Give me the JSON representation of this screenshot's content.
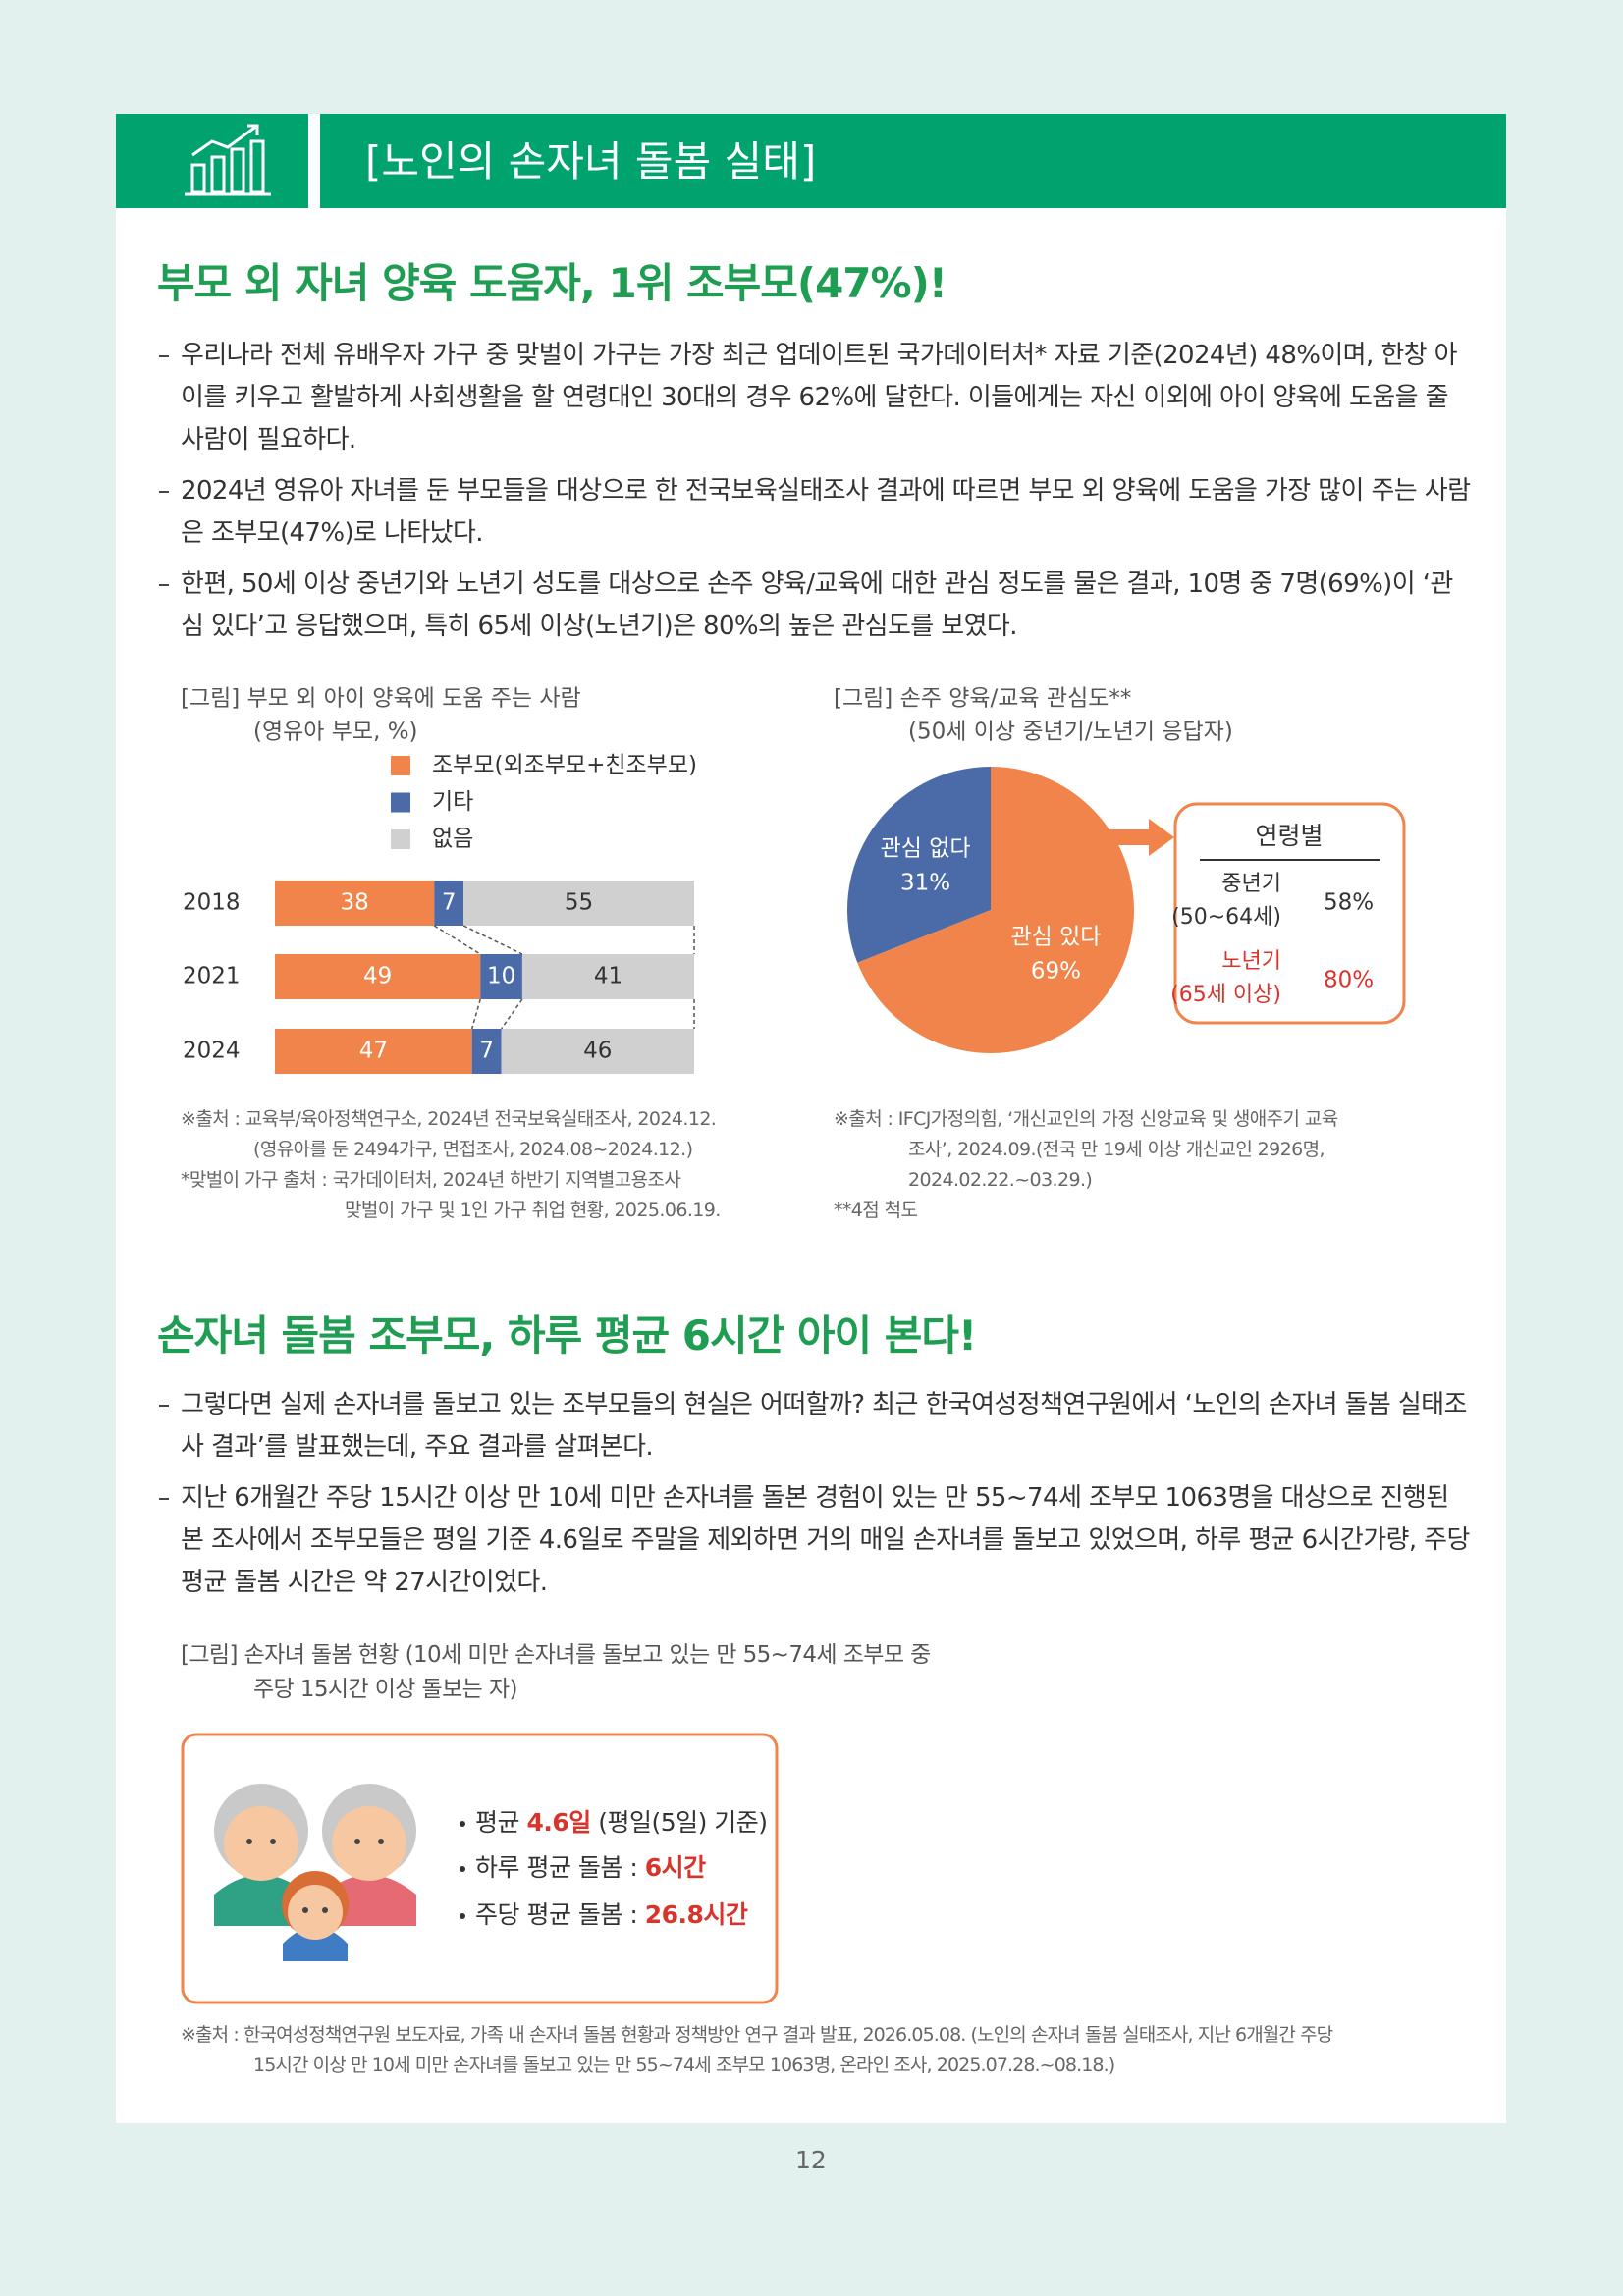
{
  "header": {
    "title": "[노인의 손자녀 돌봄 실태]"
  },
  "section1": {
    "heading": "부모 외 자녀 양육 도움자, 1위 조부모(47%)!",
    "bullets": [
      "우리나라 전체 유배우자 가구 중 맞벌이 가구는 가장 최근 업데이트된 국가데이터처* 자료 기준(2024년) 48%이며, 한창 아이를 키우고 활발하게 사회생활을 할 연령대인 30대의 경우 62%에 달한다. 이들에게는 자신 이외에 아이 양육에 도움을 줄 사람이 필요하다.",
      "2024년 영유아 자녀를 둔 부모들을 대상으로 한 전국보육실태조사 결과에 따르면 부모 외 양육에 도움을 가장 많이 주는 사람은 조부모(47%)로 나타났다.",
      "한편, 50세 이상 중년기와 노년기 성도를 대상으로 손주 양육/교육에 대한 관심 정도를 물은 결과, 10명 중 7명(69%)이 ‘관심 있다’고 응답했으며, 특히 65세 이상(노년기)은 80%의 높은 관심도를 보였다."
    ]
  },
  "chart_data": [
    {
      "type": "stacked-bar",
      "title": "[그림] 부모 외 아이 양육에 도움 주는 사람",
      "subtitle": "(영유아 부모, %)",
      "categories": [
        "2018",
        "2021",
        "2024"
      ],
      "series": [
        {
          "name": "조부모(외조부모+친조부모)",
          "color": "#f0844a",
          "values": [
            38,
            49,
            47
          ]
        },
        {
          "name": "기타",
          "color": "#4a6aa8",
          "values": [
            7,
            10,
            7
          ]
        },
        {
          "name": "없음",
          "color": "#d0d0d0",
          "values": [
            55,
            41,
            46
          ]
        }
      ],
      "xlim": [
        0,
        100
      ]
    },
    {
      "type": "pie",
      "title": "[그림] 손주 양육/교육 관심도**",
      "subtitle": "(50세 이상 중년기/노년기 응답자)",
      "categories": [
        "관심 없다",
        "관심 있다"
      ],
      "values": [
        31,
        69
      ],
      "value_labels": [
        "31%",
        "69%"
      ],
      "colors": [
        "#4a6aa8",
        "#f0844a"
      ]
    }
  ],
  "callout": {
    "title": "연령별",
    "rows": [
      {
        "label": [
          "중년기",
          "(50~64세)"
        ],
        "value": "58%"
      },
      {
        "label": [
          "노년기",
          "(65세 이상)"
        ],
        "value": "80%"
      }
    ]
  },
  "source1": [
    "※출처 : 교육부/육아정책연구소, 2024년 전국보육실태조사, 2024.12.",
    "(영유아를 둔 2494가구, 면접조사, 2024.08~2024.12.)",
    "*맞벌이 가구 출처 : 국가데이터처, 2024년 하반기 지역별고용조사",
    "맞벌이 가구 및 1인 가구 취업 현황, 2025.06.19."
  ],
  "source2": [
    "※출처 : IFCJ가정의힘, ‘개신교인의 가정 신앙교육 및 생애주기 교육",
    "조사’, 2024.09.(전국 만 19세 이상 개신교인 2926명,",
    "2024.02.22.~03.29.)",
    "**4점 척도"
  ],
  "section2": {
    "heading": "손자녀 돌봄 조부모, 하루 평균 6시간 아이 본다!",
    "bullets": [
      "그렇다면 실제 손자녀를 돌보고 있는 조부모들의 현실은 어떠할까? 최근 한국여성정책연구원에서 ‘노인의 손자녀 돌봄 실태조사 결과’를 발표했는데, 주요 결과를 살펴본다.",
      "지난 6개월간 주당 15시간 이상 만 10세 미만 손자녀를 돌본 경험이 있는 만 55~74세 조부모 1063명을 대상으로 진행된 본 조사에서 조부모들은 평일 기준 4.6일로 주말을 제외하면 거의 매일 손자녀를 돌보고 있었으며, 하루 평균 6시간가량, 주당 평균 돌봄 시간은 약 27시간이었다."
    ]
  },
  "figure3": {
    "caption": [
      "[그림] 손자녀 돌봄 현황 (10세 미만 손자녀를 돌보고 있는 만 55~74세 조부모 중",
      "주당 15시간 이상 돌보는 자)"
    ],
    "items": [
      {
        "text": "평균 ",
        "highlight": "4.6일",
        "rest": " (평일(5일) 기준)"
      },
      {
        "text": "하루 평균 돌봄 : ",
        "highlight": "6시간"
      },
      {
        "text": "주당 평균 돌봄 : ",
        "highlight": "26.8시간"
      }
    ]
  },
  "source3": [
    "※출처 : 한국여성정책연구원 보도자료, 가족 내 손자녀 돌봄 현황과 정책방안 연구 결과 발표, 2026.05.08. (노인의 손자녀 돌봄 실태조사, 지난 6개월간 주당",
    "15시간 이상 만 10세 미만 손자녀를 돌보고 있는 만 55~74세 조부모 1063명, 온라인 조사, 2025.07.28.~08.18.)"
  ],
  "page_number": "12"
}
